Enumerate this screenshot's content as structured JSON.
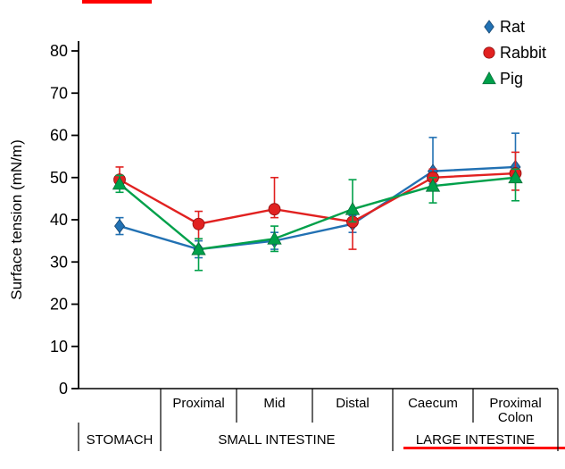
{
  "figure": {
    "background": "#ffffff",
    "artifact_color": "#ff0000"
  },
  "chart_data": {
    "type": "line",
    "title": "",
    "ylabel": "Surface tension (mN/m)",
    "ylim": [
      0,
      80
    ],
    "ytick_step": 10,
    "ytick_labels": [
      "0",
      "10",
      "20",
      "30",
      "40",
      "50",
      "60",
      "70",
      "80"
    ],
    "categories": [
      "Stomach",
      "Proximal",
      "Mid",
      "Distal",
      "Caecum",
      "Proximal Colon"
    ],
    "x_axis": {
      "cell_labels": [
        [],
        [
          "Proximal"
        ],
        [
          "Mid"
        ],
        [
          "Distal"
        ],
        [
          "Caecum"
        ],
        [
          "Proximal",
          "Colon"
        ]
      ],
      "groups": [
        {
          "label": "STOMACH",
          "from": 0,
          "to": 1
        },
        {
          "label": "SMALL INTESTINE",
          "from": 1,
          "to": 4
        },
        {
          "label": "LARGE INTESTINE",
          "from": 4,
          "to": 6
        }
      ]
    },
    "grid": false,
    "legend_position": "top-right",
    "series": [
      {
        "name": "Rat",
        "marker": "diamond",
        "color": "#2271b3",
        "values": [
          38.5,
          33,
          35,
          39,
          51.5,
          52.5
        ],
        "err_up": [
          2,
          2,
          2,
          2,
          8,
          8
        ],
        "err_down": [
          2,
          2,
          2,
          2,
          3,
          3
        ]
      },
      {
        "name": "Rabbit",
        "marker": "circle",
        "color": "#e12120",
        "values": [
          49.5,
          39,
          42.5,
          39.5,
          50,
          51
        ],
        "err_up": [
          3,
          3,
          7.5,
          2,
          2,
          5
        ],
        "err_down": [
          2,
          3.5,
          2,
          6.5,
          2,
          4
        ]
      },
      {
        "name": "Pig",
        "marker": "triangle",
        "color": "#00a04a",
        "values": [
          48.5,
          33,
          35.5,
          42.5,
          48,
          50
        ],
        "err_up": [
          2,
          2.5,
          3,
          7,
          2,
          2
        ],
        "err_down": [
          2,
          5,
          3,
          3,
          4,
          5.5
        ]
      }
    ]
  }
}
